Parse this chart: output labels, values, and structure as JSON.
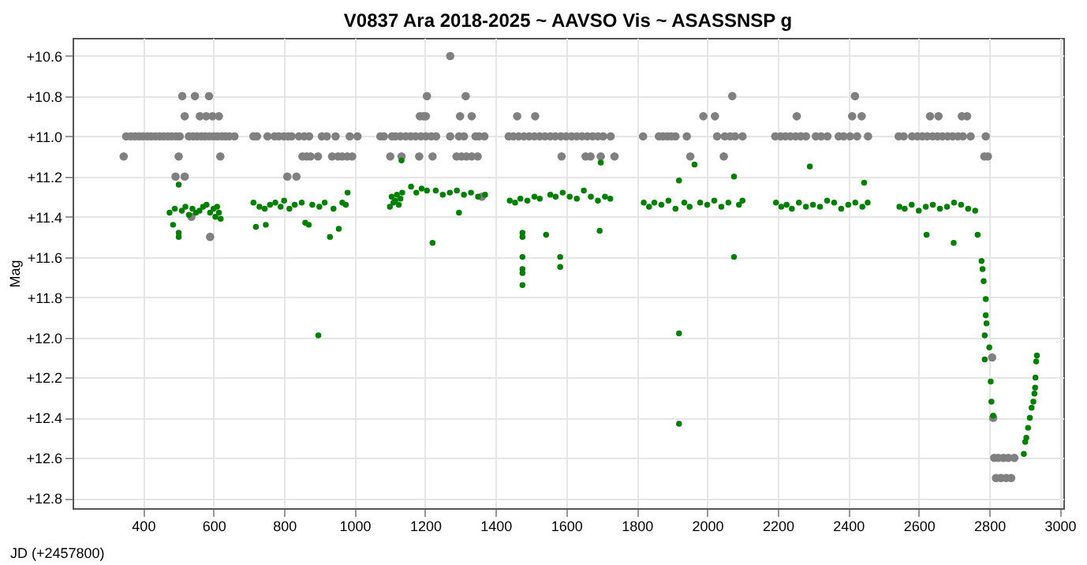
{
  "chart_data": {
    "type": "scatter",
    "title": "V0837 Ara 2018-2025 ~ AAVSO Vis ~ ASASSNSP g",
    "xlabel": "JD (+2457800)",
    "ylabel": "Mag",
    "grid": true,
    "marker": "circle",
    "xlim": [
      200,
      3010
    ],
    "xticks": [
      400,
      600,
      800,
      1000,
      1200,
      1400,
      1600,
      1800,
      2000,
      2200,
      2400,
      2600,
      2800,
      3000
    ],
    "ylim": [
      12.85,
      10.51
    ],
    "yticks": [
      {
        "value": 10.6,
        "label": "+10.6"
      },
      {
        "value": 10.8,
        "label": "+10.8"
      },
      {
        "value": 11.0,
        "label": "+11.0"
      },
      {
        "value": 11.2,
        "label": "+11.2"
      },
      {
        "value": 11.4,
        "label": "+11.4"
      },
      {
        "value": 11.6,
        "label": "+11.6"
      },
      {
        "value": 11.8,
        "label": "+11.8"
      },
      {
        "value": 12.0,
        "label": "+12.0"
      },
      {
        "value": 12.2,
        "label": "+12.2"
      },
      {
        "value": 12.4,
        "label": "+12.4"
      },
      {
        "value": 12.6,
        "label": "+12.6"
      },
      {
        "value": 12.8,
        "label": "+12.8"
      }
    ],
    "series": [
      {
        "color": "#808080",
        "x": [
          345,
          501,
          619,
          511,
          547,
          587,
          518,
          561,
          579,
          597,
          615,
          352,
          365,
          377,
          389,
          400,
          412,
          423,
          435,
          447,
          458,
          470,
          481,
          493,
          504,
          530,
          542,
          553,
          565,
          576,
          588,
          600,
          611,
          623,
          634,
          645,
          659,
          492,
          518,
          537,
          590,
          713,
          723,
          753,
          773,
          785,
          799,
          811,
          821,
          842,
          857,
          871,
          907,
          921,
          946,
          986,
          1008,
          852,
          864,
          875,
          896,
          936,
          953,
          965,
          979,
          993,
          809,
          835,
          1073,
          1083,
          1106,
          1116,
          1130,
          1145,
          1159,
          1173,
          1188,
          1202,
          1217,
          1231,
          1271,
          1296,
          1310,
          1343,
          1353,
          1368,
          1101,
          1133,
          1183,
          1221,
          1289,
          1303,
          1317,
          1332,
          1349,
          1185,
          1195,
          1202,
          1299,
          1332,
          1205,
          1315,
          1271,
          1361,
          1461,
          1512,
          1437,
          1450,
          1465,
          1480,
          1495,
          1510,
          1525,
          1540,
          1555,
          1569,
          1585,
          1600,
          1615,
          1630,
          1645,
          1660,
          1675,
          1690,
          1705,
          1726,
          1587,
          1655,
          1669,
          1698,
          1737,
          1818,
          1863,
          1875,
          1887,
          1898,
          1910,
          1942,
          2028,
          2050,
          2065,
          2079,
          2100,
          1989,
          2022,
          2071,
          1952,
          2047,
          2193,
          2208,
          2222,
          2236,
          2251,
          2265,
          2280,
          2308,
          2323,
          2341,
          2373,
          2387,
          2405,
          2425,
          2456,
          2254,
          2411,
          2438,
          2419,
          2543,
          2557,
          2581,
          2596,
          2610,
          2624,
          2639,
          2653,
          2667,
          2682,
          2696,
          2711,
          2725,
          2747,
          2790,
          2632,
          2656,
          2722,
          2737,
          2786,
          2796,
          2808,
          2811,
          2814,
          2825,
          2840,
          2854,
          2871,
          2819,
          2833,
          2848,
          2862
        ],
        "values": [
          11.1,
          11.1,
          11.1,
          10.8,
          10.8,
          10.8,
          10.9,
          10.9,
          10.9,
          10.9,
          10.9,
          11.0,
          11.0,
          11.0,
          11.0,
          11.0,
          11.0,
          11.0,
          11.0,
          11.0,
          11.0,
          11.0,
          11.0,
          11.0,
          11.0,
          11.0,
          11.0,
          11.0,
          11.0,
          11.0,
          11.0,
          11.0,
          11.0,
          11.0,
          11.0,
          11.0,
          11.0,
          11.2,
          11.2,
          11.4,
          11.5,
          11.0,
          11.0,
          11.0,
          11.0,
          11.0,
          11.0,
          11.0,
          11.0,
          11.0,
          11.0,
          11.0,
          11.0,
          11.0,
          11.0,
          11.0,
          11.0,
          11.1,
          11.1,
          11.1,
          11.1,
          11.1,
          11.1,
          11.1,
          11.1,
          11.1,
          11.2,
          11.2,
          11.0,
          11.0,
          11.0,
          11.0,
          11.0,
          11.0,
          11.0,
          11.0,
          11.0,
          11.0,
          11.0,
          11.0,
          11.0,
          11.0,
          11.0,
          11.0,
          11.0,
          11.0,
          11.1,
          11.1,
          11.1,
          11.1,
          11.1,
          11.1,
          11.1,
          11.1,
          11.1,
          10.9,
          10.9,
          10.9,
          10.9,
          10.9,
          10.8,
          10.8,
          10.6,
          11.3,
          10.9,
          10.9,
          11.0,
          11.0,
          11.0,
          11.0,
          11.0,
          11.0,
          11.0,
          11.0,
          11.0,
          11.0,
          11.0,
          11.0,
          11.0,
          11.0,
          11.0,
          11.0,
          11.0,
          11.0,
          11.0,
          11.0,
          11.1,
          11.1,
          11.1,
          11.1,
          11.1,
          11.0,
          11.0,
          11.0,
          11.0,
          11.0,
          11.0,
          11.0,
          11.0,
          11.0,
          11.0,
          11.0,
          11.0,
          10.9,
          10.9,
          10.8,
          11.1,
          11.1,
          11.0,
          11.0,
          11.0,
          11.0,
          11.0,
          11.0,
          11.0,
          11.0,
          11.0,
          11.0,
          11.0,
          11.0,
          11.0,
          11.0,
          11.0,
          10.9,
          10.9,
          10.9,
          10.8,
          11.0,
          11.0,
          11.0,
          11.0,
          11.0,
          11.0,
          11.0,
          11.0,
          11.0,
          11.0,
          11.0,
          11.0,
          11.0,
          11.0,
          11.0,
          10.9,
          10.9,
          10.9,
          10.9,
          11.1,
          11.1,
          12.1,
          12.4,
          12.6,
          12.6,
          12.6,
          12.6,
          12.6,
          12.7,
          12.7,
          12.7,
          12.7
        ]
      },
      {
        "color": "#008000",
        "x": [
          475,
          485,
          490,
          501,
          501,
          501,
          510,
          520,
          530,
          540,
          550,
          560,
          570,
          580,
          590,
          600,
          605,
          610,
          615,
          620,
          713,
          720,
          730,
          745,
          748,
          760,
          775,
          790,
          800,
          815,
          830,
          850,
          860,
          870,
          880,
          897,
          900,
          915,
          930,
          940,
          955,
          965,
          975,
          980,
          1100,
          1105,
          1110,
          1115,
          1120,
          1125,
          1130,
          1133,
          1135,
          1160,
          1175,
          1190,
          1205,
          1221,
          1230,
          1250,
          1270,
          1290,
          1296,
          1310,
          1330,
          1350,
          1370,
          1440,
          1455,
          1470,
          1476,
          1476,
          1476,
          1476,
          1476,
          1476,
          1490,
          1510,
          1525,
          1543,
          1555,
          1570,
          1583,
          1583,
          1590,
          1610,
          1630,
          1650,
          1670,
          1690,
          1695,
          1698,
          1710,
          1725,
          1820,
          1835,
          1850,
          1870,
          1890,
          1910,
          1920,
          1920,
          1920,
          1935,
          1950,
          1964,
          1980,
          2000,
          2020,
          2040,
          2060,
          2076,
          2076,
          2090,
          2100,
          2195,
          2210,
          2225,
          2240,
          2260,
          2280,
          2291,
          2300,
          2320,
          2340,
          2360,
          2380,
          2400,
          2420,
          2440,
          2445,
          2455,
          2545,
          2560,
          2580,
          2600,
          2620,
          2622,
          2640,
          2660,
          2680,
          2699,
          2700,
          2720,
          2740,
          2760,
          2767,
          2778,
          2781,
          2784,
          2787,
          2787,
          2790,
          2790,
          2792,
          2800,
          2804,
          2806,
          2811,
          2898,
          2902,
          2905,
          2910,
          2915,
          2920,
          2925,
          2928,
          2930,
          2931,
          2933,
          2935
        ],
        "values": [
          11.38,
          11.44,
          11.36,
          11.24,
          11.48,
          11.5,
          11.37,
          11.35,
          11.39,
          11.36,
          11.38,
          11.37,
          11.35,
          11.34,
          11.38,
          11.36,
          11.4,
          11.35,
          11.38,
          11.41,
          11.33,
          11.45,
          11.35,
          11.36,
          11.44,
          11.34,
          11.33,
          11.35,
          11.32,
          11.36,
          11.34,
          11.33,
          11.43,
          11.44,
          11.34,
          11.99,
          11.35,
          11.33,
          11.5,
          11.36,
          11.46,
          11.33,
          11.34,
          11.28,
          11.35,
          11.3,
          11.33,
          11.32,
          11.29,
          11.34,
          11.31,
          11.12,
          11.28,
          11.25,
          11.28,
          11.26,
          11.27,
          11.53,
          11.27,
          11.29,
          11.28,
          11.27,
          11.38,
          11.29,
          11.28,
          11.3,
          11.29,
          11.32,
          11.33,
          11.31,
          11.48,
          11.5,
          11.6,
          11.66,
          11.68,
          11.74,
          11.32,
          11.3,
          11.31,
          11.49,
          11.29,
          11.3,
          11.6,
          11.65,
          11.28,
          11.3,
          11.31,
          11.27,
          11.3,
          11.32,
          11.47,
          11.13,
          11.3,
          11.31,
          11.33,
          11.35,
          11.33,
          11.34,
          11.32,
          11.36,
          11.22,
          11.98,
          12.43,
          11.33,
          11.35,
          11.14,
          11.33,
          11.34,
          11.32,
          11.35,
          11.33,
          11.2,
          11.6,
          11.34,
          11.32,
          11.33,
          11.35,
          11.34,
          11.36,
          11.33,
          11.35,
          11.15,
          11.34,
          11.35,
          11.32,
          11.33,
          11.36,
          11.34,
          11.33,
          11.35,
          11.23,
          11.33,
          11.35,
          11.36,
          11.34,
          11.37,
          11.35,
          11.49,
          11.34,
          11.36,
          11.35,
          11.53,
          11.33,
          11.34,
          11.36,
          11.37,
          11.49,
          11.62,
          11.66,
          11.72,
          11.99,
          12.11,
          11.81,
          11.89,
          11.93,
          12.05,
          12.22,
          12.32,
          12.39,
          12.58,
          12.52,
          12.5,
          12.45,
          12.4,
          12.35,
          12.32,
          12.28,
          12.25,
          12.2,
          12.12,
          12.09
        ]
      }
    ]
  }
}
